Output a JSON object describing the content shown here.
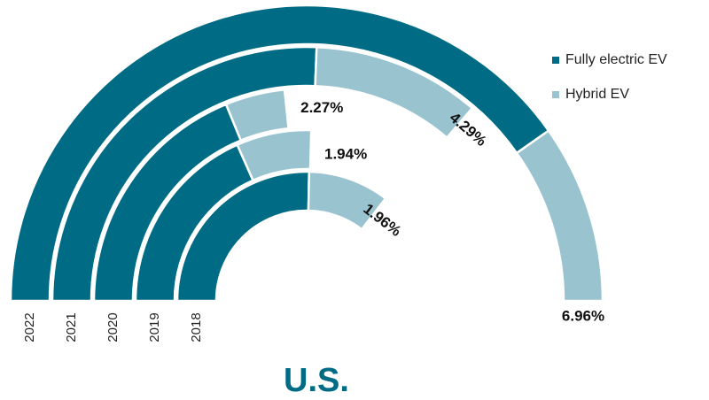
{
  "chart_data": {
    "type": "radial-stacked-bar",
    "title": "U.S.",
    "categories": [
      "2022",
      "2021",
      "2020",
      "2019",
      "2018"
    ],
    "series": [
      {
        "name": "Fully electric EV",
        "color": "#006b84",
        "values": [
          5.6,
          3.03,
          1.83,
          1.4,
          1.4
        ]
      },
      {
        "name": "Hybrid EV",
        "color": "#98c3cf",
        "values": [
          1.36,
          1.26,
          0.44,
          0.54,
          0.56
        ]
      }
    ],
    "totals": [
      6.96,
      4.29,
      2.27,
      1.94,
      1.96
    ],
    "total_labels": [
      "6.96%",
      "4.29%",
      "2.27%",
      "1.94%",
      "1.96%"
    ],
    "legend": "top-right"
  }
}
